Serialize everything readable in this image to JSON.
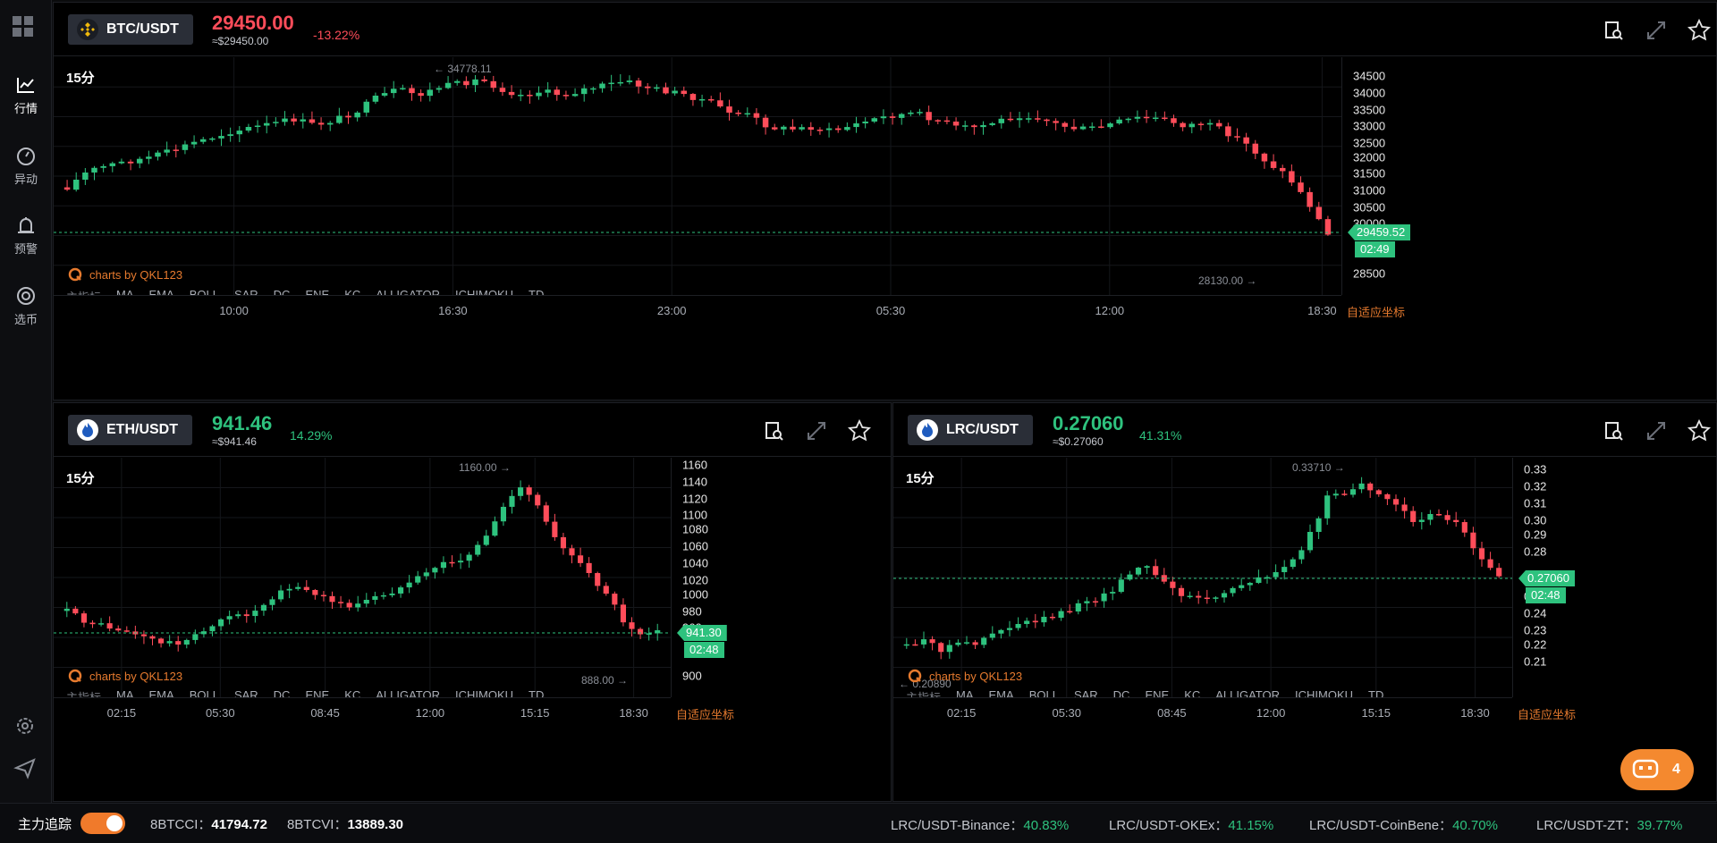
{
  "sidebar": {
    "items": [
      {
        "label": "行情",
        "icon": "chart-line-icon"
      },
      {
        "label": "异动",
        "icon": "gauge-icon"
      },
      {
        "label": "预警",
        "icon": "alarm-icon"
      },
      {
        "label": "选币",
        "icon": "target-icon"
      }
    ]
  },
  "indicators": [
    "主指标",
    "MA",
    "EMA",
    "BOLL",
    "SAR",
    "DC",
    "ENE",
    "KC",
    "ALLIGATOR",
    "ICHIMOKU",
    "TD"
  ],
  "timeframe": "15分",
  "watermark": "charts by QKL123",
  "autofit_label": "自适应坐标",
  "colors": {
    "up": "#2ec27e",
    "down": "#ff4d5a",
    "accent": "#f07a2b"
  },
  "panels": {
    "btc": {
      "pair": "BTC/USDT",
      "exchange_icon": "binance-icon",
      "price": "29450.00",
      "approx": "≈$29450.00",
      "change": "-13.22%",
      "trend": "down",
      "high_label": "← 34778.11",
      "low_label": "28130.00 →",
      "current_price": "29459.52",
      "countdown": "02:49",
      "yticks": [
        "34500",
        "34000",
        "33500",
        "33000",
        "32500",
        "32000",
        "31500",
        "31000",
        "30500",
        "30000",
        "28500"
      ],
      "xticks": [
        "10:00",
        "16:30",
        "23:00",
        "05:30",
        "12:00",
        "18:30"
      ]
    },
    "eth": {
      "pair": "ETH/USDT",
      "exchange_icon": "huobi-icon",
      "price": "941.46",
      "approx": "≈$941.46",
      "change": "14.29%",
      "trend": "up",
      "high_label": "1160.00 →",
      "low_label": "888.00 →",
      "current_price": "941.30",
      "countdown": "02:48",
      "yticks": [
        "1160",
        "1140",
        "1120",
        "1100",
        "1080",
        "1060",
        "1040",
        "1020",
        "1000",
        "980",
        "960",
        "900"
      ],
      "xticks": [
        "02:15",
        "05:30",
        "08:45",
        "12:00",
        "15:15",
        "18:30"
      ]
    },
    "lrc": {
      "pair": "LRC/USDT",
      "exchange_icon": "huobi-icon",
      "price": "0.27060",
      "approx": "≈$0.27060",
      "change": "41.31%",
      "trend": "up",
      "high_label": "0.33710 →",
      "low_label": "← 0.20890",
      "current_price": "0.27060",
      "countdown": "02:48",
      "yticks": [
        "0.33",
        "0.32",
        "0.31",
        "0.30",
        "0.29",
        "0.28",
        "0.25",
        "0.24",
        "0.23",
        "0.22",
        "0.21"
      ],
      "xticks": [
        "02:15",
        "05:30",
        "08:45",
        "12:00",
        "15:15",
        "18:30"
      ]
    }
  },
  "bottom": {
    "tracking_label": "主力追踪",
    "indices": [
      {
        "name": "8BTCCI：",
        "value": "41794.72"
      },
      {
        "name": "8BTCVI：",
        "value": "13889.30"
      }
    ],
    "exchanges": [
      {
        "name": "LRC/USDT-Binance：",
        "value": "40.83%"
      },
      {
        "name": "LRC/USDT-OKEx：",
        "value": "41.15%"
      },
      {
        "name": "LRC/USDT-CoinBene：",
        "value": "40.70%"
      },
      {
        "name": "LRC/USDT-ZT：",
        "value": "39.77%"
      }
    ],
    "chat_count": "4"
  }
}
